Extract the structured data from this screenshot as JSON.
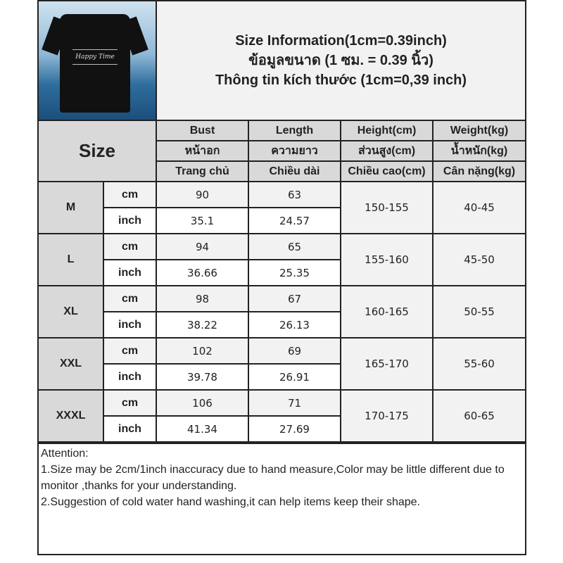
{
  "title_lines": [
    "Size Information(1cm=0.39inch)",
    "ข้อมูลขนาด (1 ซม. = 0.39 นิ้ว)",
    "Thông tin kích thước (1cm=0,39 inch)"
  ],
  "photo": {
    "description_icon": "black-tshirt-product-photo",
    "shirt_print": "Happy Time"
  },
  "size_header": "Size",
  "columns": [
    [
      "Bust",
      "หน้าอก",
      "Trang chủ"
    ],
    [
      "Length",
      "ความยาว",
      "Chiều dài"
    ],
    [
      "Height(cm)",
      "ส่วนสูง(cm)",
      "Chiều cao(cm)"
    ],
    [
      "Weight(kg)",
      "น้ำหนัก(kg)",
      "Cân nặng(kg)"
    ]
  ],
  "units": {
    "cm": "cm",
    "inch": "inch"
  },
  "rows": [
    {
      "size": "M",
      "bust_cm": "90",
      "length_cm": "63",
      "bust_in": "35.1",
      "length_in": "24.57",
      "height": "150-155",
      "weight": "40-45"
    },
    {
      "size": "L",
      "bust_cm": "94",
      "length_cm": "65",
      "bust_in": "36.66",
      "length_in": "25.35",
      "height": "155-160",
      "weight": "45-50"
    },
    {
      "size": "XL",
      "bust_cm": "98",
      "length_cm": "67",
      "bust_in": "38.22",
      "length_in": "26.13",
      "height": "160-165",
      "weight": "50-55"
    },
    {
      "size": "XXL",
      "bust_cm": "102",
      "length_cm": "69",
      "bust_in": "39.78",
      "length_in": "26.91",
      "height": "165-170",
      "weight": "55-60"
    },
    {
      "size": "XXXL",
      "bust_cm": "106",
      "length_cm": "71",
      "bust_in": "41.34",
      "length_in": "27.69",
      "height": "170-175",
      "weight": "60-65"
    }
  ],
  "notes": [
    "Attention:",
    "1.Size may be 2cm/1inch inaccuracy due to hand measure,Color may be little different due to monitor ,thanks for your understanding.",
    "2.Suggestion of cold water hand washing,it can help items keep their shape."
  ]
}
